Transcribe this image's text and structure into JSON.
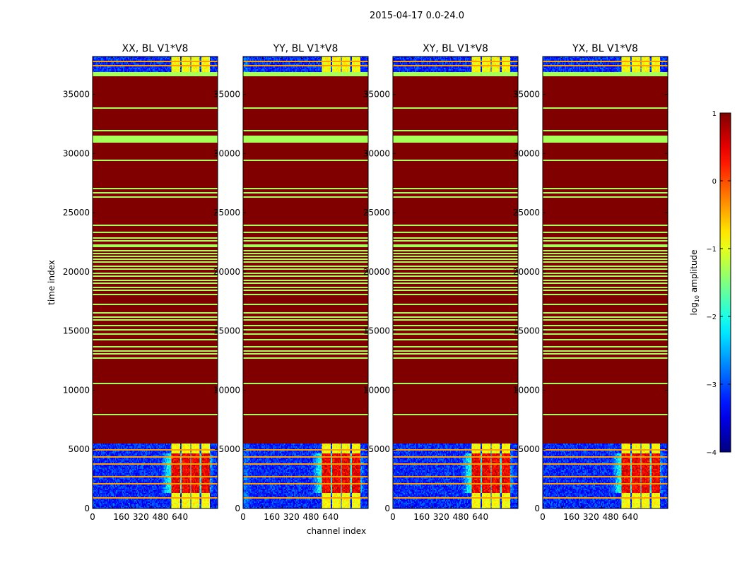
{
  "figure": {
    "title": "2015-04-17 0.0-24.0",
    "xlabel": "channel index",
    "ylabel": "time index"
  },
  "chart_data": {
    "type": "heatmap",
    "title": "2015-04-17 0.0-24.0",
    "xlabel": "channel index",
    "ylabel": "time index",
    "xlim": [
      0,
      1024
    ],
    "ylim": [
      0,
      38200
    ],
    "x_ticks": [
      0,
      160,
      320,
      480,
      640
    ],
    "x_tick_labels": [
      "0",
      "160",
      "320",
      "480",
      "640"
    ],
    "y_ticks": [
      0,
      5000,
      10000,
      15000,
      20000,
      25000,
      30000,
      35000
    ],
    "y_tick_labels": [
      "0",
      "5000",
      "10000",
      "15000",
      "20000",
      "25000",
      "30000",
      "35000"
    ],
    "panels": [
      {
        "title": "XX, BL V1*V8"
      },
      {
        "title": "YY, BL V1*V8"
      },
      {
        "title": "XY, BL V1*V8"
      },
      {
        "title": "YX, BL V1*V8"
      }
    ],
    "colorbar": {
      "label_prefix": "log",
      "label_sub": "10",
      "label_suffix": " amplitude",
      "range": [
        -4,
        1
      ],
      "ticks": [
        1,
        0,
        -1,
        -2,
        -3,
        -4
      ],
      "tick_labels": [
        "1",
        "0",
        "−1",
        "−2",
        "−3",
        "−4"
      ],
      "colormap": "jet"
    },
    "regions": {
      "low_noise_end": 5400,
      "saturated_band": [
        5400,
        36600
      ],
      "top_noise_start": 36900,
      "bright_channel_blocks": [
        [
          650,
          720
        ],
        [
          730,
          800
        ],
        [
          810,
          880
        ],
        [
          890,
          960
        ]
      ],
      "diffuse_glow_channels": [
        560,
        1000
      ],
      "diffuse_glow_time": [
        1200,
        4600
      ],
      "saturated_value": 1.0,
      "noise_value": -3.2,
      "block_value": -0.9,
      "flag_value": -1.3
    },
    "flag_rows": [
      36700,
      33900,
      32000,
      31200,
      29400,
      27100,
      26700,
      26300,
      24000,
      23300,
      22900,
      22600,
      22300,
      22100,
      21800,
      21600,
      21300,
      21100,
      20800,
      20500,
      20200,
      19900,
      19600,
      19300,
      19000,
      18700,
      18400,
      18100,
      17200,
      16500,
      16200,
      15900,
      15500,
      15100,
      14700,
      14300,
      13700,
      13300,
      13000,
      12700,
      10500,
      7900
    ],
    "wide_flag_rows": [
      31200
    ],
    "noise_flag_rows": [
      4900,
      4300,
      3700,
      2600,
      2000,
      800,
      37800,
      37500
    ]
  }
}
